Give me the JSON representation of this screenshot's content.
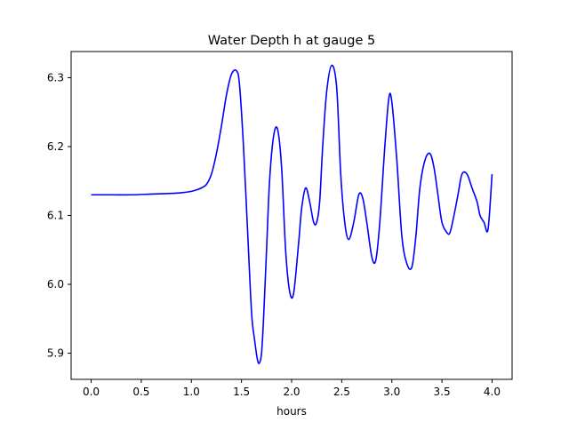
{
  "chart_data": {
    "type": "line",
    "title": "Water Depth h at gauge 5",
    "xlabel": "hours",
    "ylabel": "",
    "xlim": [
      -0.2,
      4.2
    ],
    "ylim": [
      5.862,
      6.338
    ],
    "xticks": [
      0.0,
      0.5,
      1.0,
      1.5,
      2.0,
      2.5,
      3.0,
      3.5,
      4.0
    ],
    "xtick_labels": [
      "0.0",
      "0.5",
      "1.0",
      "1.5",
      "2.0",
      "2.5",
      "3.0",
      "3.5",
      "4.0"
    ],
    "yticks": [
      5.9,
      6.0,
      6.1,
      6.2,
      6.3
    ],
    "ytick_labels": [
      "5.9",
      "6.0",
      "6.1",
      "6.2",
      "6.3"
    ],
    "grid": false,
    "legend": "none",
    "series": [
      {
        "color": "#0000ff",
        "x": [
          0.0,
          0.2,
          0.4,
          0.6,
          0.8,
          0.9,
          1.0,
          1.05,
          1.1,
          1.15,
          1.2,
          1.25,
          1.3,
          1.35,
          1.4,
          1.45,
          1.48,
          1.52,
          1.56,
          1.6,
          1.63,
          1.66,
          1.68,
          1.7,
          1.72,
          1.75,
          1.78,
          1.82,
          1.86,
          1.9,
          1.94,
          1.98,
          2.02,
          2.07,
          2.1,
          2.14,
          2.18,
          2.22,
          2.25,
          2.28,
          2.31,
          2.35,
          2.4,
          2.45,
          2.49,
          2.53,
          2.57,
          2.62,
          2.67,
          2.71,
          2.75,
          2.8,
          2.84,
          2.88,
          2.93,
          2.97,
          3.0,
          3.05,
          3.1,
          3.15,
          3.2,
          3.24,
          3.28,
          3.33,
          3.38,
          3.42,
          3.46,
          3.5,
          3.55,
          3.58,
          3.62,
          3.66,
          3.7,
          3.75,
          3.8,
          3.85,
          3.88,
          3.92,
          3.96,
          4.0
        ],
        "y": [
          6.13,
          6.13,
          6.13,
          6.131,
          6.132,
          6.133,
          6.135,
          6.137,
          6.14,
          6.145,
          6.16,
          6.19,
          6.23,
          6.275,
          6.305,
          6.31,
          6.29,
          6.2,
          6.08,
          5.96,
          5.92,
          5.89,
          5.886,
          5.9,
          5.95,
          6.05,
          6.15,
          6.215,
          6.225,
          6.17,
          6.05,
          5.99,
          5.987,
          6.06,
          6.11,
          6.14,
          6.12,
          6.09,
          6.09,
          6.12,
          6.2,
          6.28,
          6.318,
          6.285,
          6.16,
          6.09,
          6.065,
          6.09,
          6.13,
          6.125,
          6.09,
          6.04,
          6.035,
          6.09,
          6.2,
          6.27,
          6.265,
          6.18,
          6.07,
          6.03,
          6.025,
          6.07,
          6.14,
          6.18,
          6.19,
          6.17,
          6.13,
          6.09,
          6.075,
          6.075,
          6.1,
          6.13,
          6.16,
          6.16,
          6.14,
          6.12,
          6.1,
          6.09,
          6.08,
          6.16
        ]
      }
    ]
  }
}
